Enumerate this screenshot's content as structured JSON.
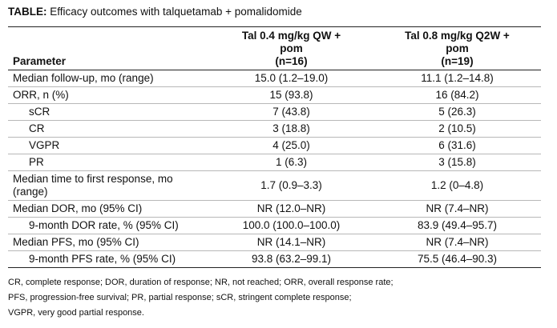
{
  "title": {
    "prefix": "TABLE:",
    "text": " Efficacy outcomes with talquetamab + pomalidomide"
  },
  "columns": {
    "parameter": "Parameter",
    "col1": {
      "line1": "Tal 0.4 mg/kg QW +",
      "line2": "pom",
      "line3": "(n=16)"
    },
    "col2": {
      "line1": "Tal 0.8 mg/kg Q2W +",
      "line2": "pom",
      "line3": "(n=19)"
    }
  },
  "rows": [
    {
      "label": "Median follow-up, mo (range)",
      "v1": "15.0 (1.2–19.0)",
      "v2": "11.1 (1.2–14.8)"
    },
    {
      "label": "ORR, n (%)",
      "v1": "15 (93.8)",
      "v2": "16 (84.2)"
    },
    {
      "label": "sCR",
      "v1": "7 (43.8)",
      "v2": "5 (26.3)"
    },
    {
      "label": "CR",
      "v1": "3 (18.8)",
      "v2": "2 (10.5)"
    },
    {
      "label": "VGPR",
      "v1": "4 (25.0)",
      "v2": "6 (31.6)"
    },
    {
      "label": "PR",
      "v1": "1 (6.3)",
      "v2": "3 (15.8)"
    },
    {
      "label_line1": "Median time to first response, mo",
      "label_line2": "(range)",
      "v1": "1.7 (0.9–3.3)",
      "v2": "1.2 (0–4.8)"
    },
    {
      "label": "Median DOR, mo (95% CI)",
      "v1": "NR (12.0–NR)",
      "v2": "NR (7.4–NR)"
    },
    {
      "label": "9-month DOR rate, % (95% CI)",
      "v1": "100.0 (100.0–100.0)",
      "v2": "83.9 (49.4–95.7)"
    },
    {
      "label": "Median PFS, mo (95% CI)",
      "v1": "NR (14.1–NR)",
      "v2": "NR (7.4–NR)"
    },
    {
      "label": "9-month PFS rate, % (95% CI)",
      "v1": "93.8 (63.2–99.1)",
      "v2": "75.5 (46.4–90.3)"
    }
  ],
  "footnote": [
    "CR, complete response; DOR, duration of response; NR, not reached; ORR, overall response rate;",
    "PFS, progression-free survival; PR, partial response; sCR, stringent complete response;",
    "VGPR, very good partial response."
  ]
}
